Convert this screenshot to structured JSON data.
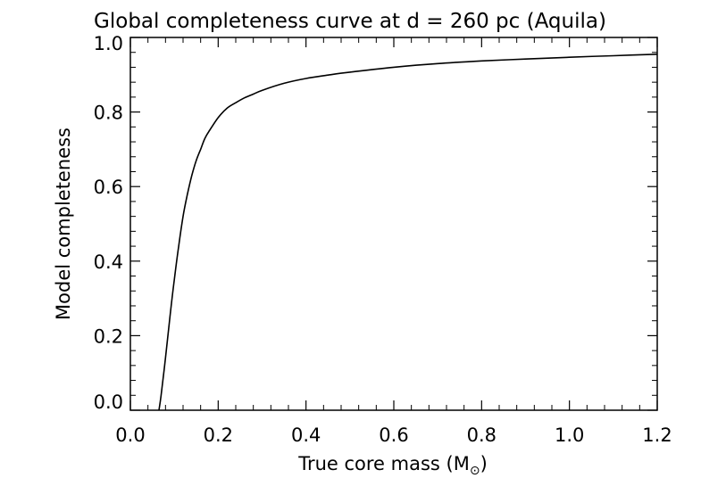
{
  "chart_data": {
    "type": "line",
    "title": "Global completeness curve at d = 260 pc (Aquila)",
    "xlabel": {
      "main": "True core mass (M",
      "sub": "⊙",
      "close": ")"
    },
    "ylabel": "Model completeness",
    "xlim": [
      0.0,
      1.2
    ],
    "ylim": [
      0.0,
      1.0
    ],
    "xticks": [
      0.0,
      0.2,
      0.4,
      0.6,
      0.8,
      1.0,
      1.2
    ],
    "xtick_labels": [
      "0.0",
      "0.2",
      "0.4",
      "0.6",
      "0.8",
      "1.0",
      "1.2"
    ],
    "yticks": [
      0.0,
      0.2,
      0.4,
      0.6,
      0.8,
      1.0
    ],
    "ytick_labels": [
      "0.0",
      "0.2",
      "0.4",
      "0.6",
      "0.8",
      "1.0"
    ],
    "series": [
      {
        "name": "completeness",
        "x": [
          0.065,
          0.07,
          0.08,
          0.09,
          0.1,
          0.11,
          0.12,
          0.13,
          0.14,
          0.15,
          0.16,
          0.17,
          0.18,
          0.2,
          0.22,
          0.24,
          0.26,
          0.28,
          0.3,
          0.35,
          0.4,
          0.45,
          0.5,
          0.6,
          0.7,
          0.8,
          0.9,
          1.0,
          1.1,
          1.2
        ],
        "y": [
          0.0,
          0.04,
          0.14,
          0.25,
          0.35,
          0.44,
          0.52,
          0.58,
          0.63,
          0.67,
          0.7,
          0.73,
          0.75,
          0.785,
          0.81,
          0.825,
          0.838,
          0.848,
          0.858,
          0.877,
          0.89,
          0.899,
          0.907,
          0.92,
          0.93,
          0.937,
          0.942,
          0.947,
          0.951,
          0.955
        ]
      }
    ]
  }
}
